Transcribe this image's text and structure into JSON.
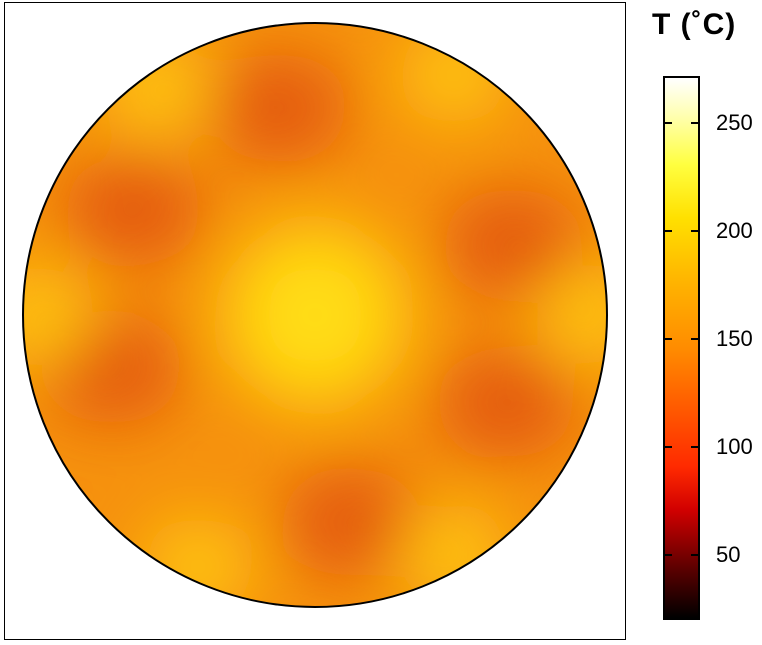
{
  "chart_data": {
    "type": "heatmap",
    "colorbar": {
      "title": "T (˚C)",
      "range": [
        20,
        272
      ],
      "ticks": [
        50,
        100,
        150,
        200,
        250
      ],
      "colormap": [
        "#000000",
        "#5a0000",
        "#d10000",
        "#ff5f00",
        "#ff8c00",
        "#ffb300",
        "#ffe000",
        "#ffff40",
        "#ffffff"
      ]
    },
    "field": {
      "shape": "circle",
      "center_temp_c": 188,
      "edge_bright_spots_c": 183,
      "dark_lobes_c": 135,
      "base_temp_c": 157,
      "pattern": "six-fold symmetric lobes"
    }
  }
}
